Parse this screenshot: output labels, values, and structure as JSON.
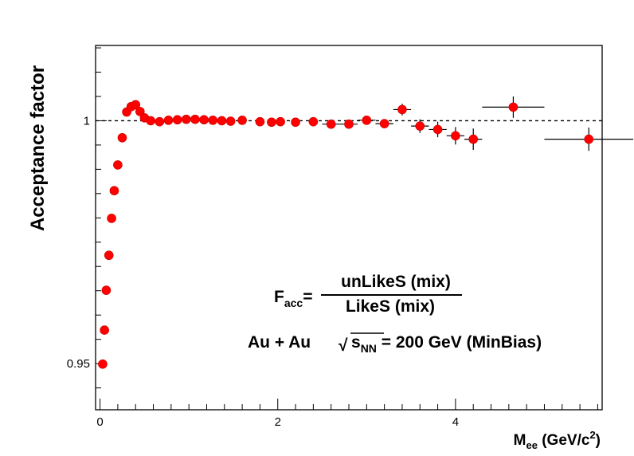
{
  "chart_data": {
    "type": "scatter",
    "title": "",
    "xlabel_main": "M",
    "xlabel_sub": "ee",
    "xlabel_rest": " (GeV/c",
    "xlabel_sup": "2",
    "xlabel_close": ")",
    "ylabel": "Acceptance factor",
    "xlim": [
      -0.05,
      5.65
    ],
    "ylim": [
      0.9405,
      1.0155
    ],
    "x_ticks": [
      {
        "value": 0,
        "label": "0"
      },
      {
        "value": 2,
        "label": "2"
      },
      {
        "value": 4,
        "label": "4"
      }
    ],
    "y_ticks": [
      {
        "value": 0.95,
        "label": "0.95"
      },
      {
        "value": 1.0,
        "label": "1"
      }
    ],
    "reference_line": {
      "y": 1.0,
      "style": "dashed"
    },
    "marker_color": "#ff0000",
    "points": [
      {
        "x": 0.03,
        "y": 0.9499,
        "xerr": 0,
        "yerr": 0
      },
      {
        "x": 0.05,
        "y": 0.9569,
        "xerr": 0,
        "yerr": 0
      },
      {
        "x": 0.07,
        "y": 0.9651,
        "xerr": 0,
        "yerr": 0
      },
      {
        "x": 0.1,
        "y": 0.9723,
        "xerr": 0,
        "yerr": 0
      },
      {
        "x": 0.13,
        "y": 0.9799,
        "xerr": 0,
        "yerr": 0
      },
      {
        "x": 0.16,
        "y": 0.9856,
        "xerr": 0,
        "yerr": 0
      },
      {
        "x": 0.2,
        "y": 0.9909,
        "xerr": 0,
        "yerr": 0
      },
      {
        "x": 0.25,
        "y": 0.9965,
        "xerr": 0,
        "yerr": 0
      },
      {
        "x": 0.3,
        "y": 1.0018,
        "xerr": 0,
        "yerr": 0
      },
      {
        "x": 0.35,
        "y": 1.0029,
        "xerr": 0,
        "yerr": 0
      },
      {
        "x": 0.4,
        "y": 1.0033,
        "xerr": 0,
        "yerr": 0
      },
      {
        "x": 0.45,
        "y": 1.0019,
        "xerr": 0,
        "yerr": 0
      },
      {
        "x": 0.5,
        "y": 1.0006,
        "xerr": 0,
        "yerr": 0
      },
      {
        "x": 0.57,
        "y": 1.0,
        "xerr": 0,
        "yerr": 0
      },
      {
        "x": 0.67,
        "y": 0.9998,
        "xerr": 0,
        "yerr": 0
      },
      {
        "x": 0.77,
        "y": 1.0001,
        "xerr": 0,
        "yerr": 0
      },
      {
        "x": 0.87,
        "y": 1.0002,
        "xerr": 0,
        "yerr": 0
      },
      {
        "x": 0.97,
        "y": 1.0003,
        "xerr": 0,
        "yerr": 0
      },
      {
        "x": 1.07,
        "y": 1.0003,
        "xerr": 0,
        "yerr": 0
      },
      {
        "x": 1.17,
        "y": 1.0002,
        "xerr": 0,
        "yerr": 0
      },
      {
        "x": 1.27,
        "y": 1.0001,
        "xerr": 0,
        "yerr": 0
      },
      {
        "x": 1.37,
        "y": 1.0,
        "xerr": 0,
        "yerr": 0
      },
      {
        "x": 1.47,
        "y": 0.9999,
        "xerr": 0,
        "yerr": 0
      },
      {
        "x": 1.6,
        "y": 1.0001,
        "xerr": 0,
        "yerr": 0
      },
      {
        "x": 1.8,
        "y": 0.9998,
        "xerr": 0,
        "yerr": 0
      },
      {
        "x": 1.93,
        "y": 0.9997,
        "xerr": 0,
        "yerr": 0
      },
      {
        "x": 2.03,
        "y": 0.9998,
        "xerr": 0,
        "yerr": 0
      },
      {
        "x": 2.2,
        "y": 0.9997,
        "xerr": 0,
        "yerr": 0
      },
      {
        "x": 2.4,
        "y": 0.9998,
        "xerr": 0,
        "yerr": 0
      },
      {
        "x": 2.6,
        "y": 0.9993,
        "xerr": 0.1,
        "yerr": 0.0008
      },
      {
        "x": 2.8,
        "y": 0.9993,
        "xerr": 0.1,
        "yerr": 0.0008
      },
      {
        "x": 3.0,
        "y": 1.0001,
        "xerr": 0.1,
        "yerr": 0.0008
      },
      {
        "x": 3.2,
        "y": 0.9994,
        "xerr": 0.1,
        "yerr": 0.0008
      },
      {
        "x": 3.4,
        "y": 1.0023,
        "xerr": 0.1,
        "yerr": 0.0012
      },
      {
        "x": 3.6,
        "y": 0.9989,
        "xerr": 0.1,
        "yerr": 0.0014
      },
      {
        "x": 3.8,
        "y": 0.9982,
        "xerr": 0.1,
        "yerr": 0.0016
      },
      {
        "x": 4.0,
        "y": 0.9969,
        "xerr": 0.1,
        "yerr": 0.0018
      },
      {
        "x": 4.2,
        "y": 0.9962,
        "xerr": 0.1,
        "yerr": 0.0022
      },
      {
        "x": 4.65,
        "y": 1.0028,
        "xerr": 0.35,
        "yerr": 0.0022
      },
      {
        "x": 5.5,
        "y": 0.9962,
        "xerr": 0.5,
        "yerr": 0.0024
      }
    ]
  },
  "formula": {
    "lhs_main": "F",
    "lhs_sub": "acc",
    "equals": "=",
    "numerator": "unLikeS (mix)",
    "denominator": "LikeS (mix)"
  },
  "annotation": {
    "system": "Au + Au",
    "sqrt_symbol": "√",
    "s_main": "s",
    "s_sub": "NN",
    "energy_text": " = 200 GeV (MinBias)"
  }
}
